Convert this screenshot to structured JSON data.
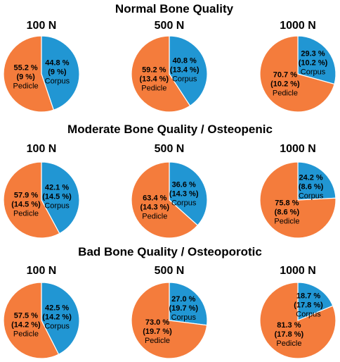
{
  "colors": {
    "corpus": "#2196D3",
    "pedicle": "#F47C3C",
    "text": "#000000",
    "background": "#ffffff"
  },
  "chart_data": {
    "type": "pie",
    "groups": [
      {
        "title": "Normal Bone Quality",
        "charts": [
          {
            "title": "100 N",
            "slices": [
              {
                "name": "Corpus",
                "value": 44.8,
                "sd": 9,
                "label_value": "44.8 %",
                "label_sd": "(9 %)"
              },
              {
                "name": "Pedicle",
                "value": 55.2,
                "sd": 9,
                "label_value": "55.2 %",
                "label_sd": "(9 %)"
              }
            ]
          },
          {
            "title": "500 N",
            "slices": [
              {
                "name": "Corpus",
                "value": 40.8,
                "sd": 13.4,
                "label_value": "40.8 %",
                "label_sd": "(13.4 %)"
              },
              {
                "name": "Pedicle",
                "value": 59.2,
                "sd": 13.4,
                "label_value": "59.2 %",
                "label_sd": "(13.4 %)"
              }
            ]
          },
          {
            "title": "1000 N",
            "slices": [
              {
                "name": "Corpus",
                "value": 29.3,
                "sd": 10.2,
                "label_value": "29.3 %",
                "label_sd": "(10.2 %)"
              },
              {
                "name": "Pedicle",
                "value": 70.7,
                "sd": 10.2,
                "label_value": "70.7 %",
                "label_sd": "(10.2 %)"
              }
            ]
          }
        ]
      },
      {
        "title": "Moderate Bone Quality / Osteopenic",
        "charts": [
          {
            "title": "100 N",
            "slices": [
              {
                "name": "Corpus",
                "value": 42.1,
                "sd": 14.5,
                "label_value": "42.1 %",
                "label_sd": "(14.5 %)"
              },
              {
                "name": "Pedicle",
                "value": 57.9,
                "sd": 14.5,
                "label_value": "57.9 %",
                "label_sd": "(14.5 %)"
              }
            ]
          },
          {
            "title": "500 N",
            "slices": [
              {
                "name": "Corpus",
                "value": 36.6,
                "sd": 14.3,
                "label_value": "36.6 %",
                "label_sd": "(14.3 %)"
              },
              {
                "name": "Pedicle",
                "value": 63.4,
                "sd": 14.3,
                "label_value": "63.4 %",
                "label_sd": "(14.3 %)"
              }
            ]
          },
          {
            "title": "1000 N",
            "slices": [
              {
                "name": "Corpus",
                "value": 24.2,
                "sd": 8.6,
                "label_value": "24.2 %",
                "label_sd": "(8.6 %)"
              },
              {
                "name": "Pedicle",
                "value": 75.8,
                "sd": 8.6,
                "label_value": "75.8 %",
                "label_sd": "(8.6 %)"
              }
            ]
          }
        ]
      },
      {
        "title": "Bad Bone Quality / Osteoporotic",
        "charts": [
          {
            "title": "100 N",
            "slices": [
              {
                "name": "Corpus",
                "value": 42.5,
                "sd": 14.2,
                "label_value": "42.5 %",
                "label_sd": "(14.2 %)"
              },
              {
                "name": "Pedicle",
                "value": 57.5,
                "sd": 14.2,
                "label_value": "57.5 %",
                "label_sd": "(14.2 %)"
              }
            ]
          },
          {
            "title": "500 N",
            "slices": [
              {
                "name": "Corpus",
                "value": 27.0,
                "sd": 19.7,
                "label_value": "27.0 %",
                "label_sd": "(19.7 %)"
              },
              {
                "name": "Pedicle",
                "value": 73.0,
                "sd": 19.7,
                "label_value": "73.0 %",
                "label_sd": "(19.7 %)"
              }
            ]
          },
          {
            "title": "1000 N",
            "slices": [
              {
                "name": "Corpus",
                "value": 18.7,
                "sd": 17.8,
                "label_value": "18.7 %",
                "label_sd": "(17.8 %)"
              },
              {
                "name": "Pedicle",
                "value": 81.3,
                "sd": 17.8,
                "label_value": "81.3 %",
                "label_sd": "(17.8 %)"
              }
            ]
          }
        ]
      }
    ]
  }
}
